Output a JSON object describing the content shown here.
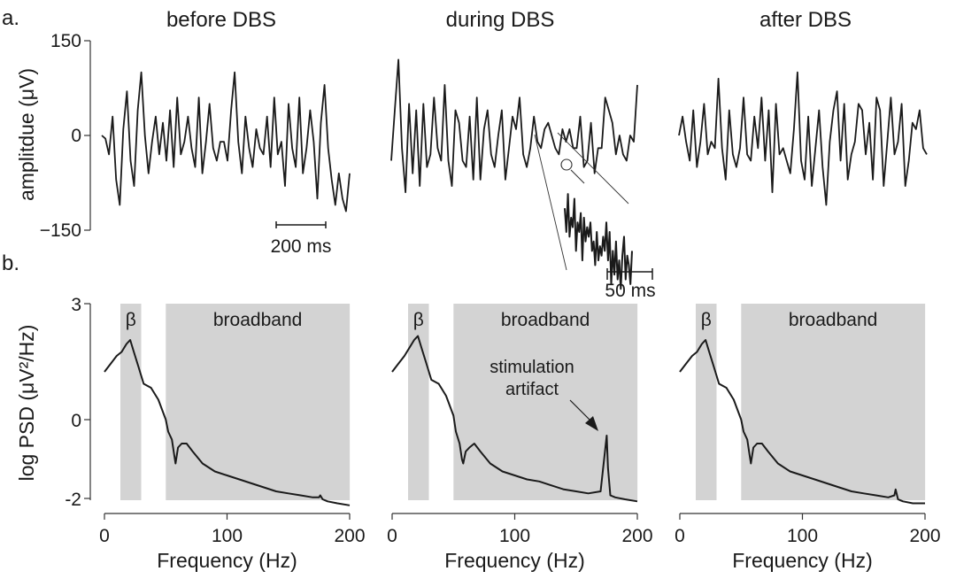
{
  "figure": {
    "label_a": "a.",
    "label_b": "b.",
    "titles": [
      "before DBS",
      "during DBS",
      "after DBS"
    ]
  },
  "colors": {
    "trace": "#1a1a1a",
    "band_fill": "#d3d3d3",
    "axis": "#333333"
  },
  "chart_data": [
    {
      "type": "line",
      "panel": "a",
      "ylabel": "amplitdue  (μV)",
      "ylim": [
        -150,
        150
      ],
      "yticks": [
        "150",
        "0",
        "−150"
      ],
      "scale_bar": "200 ms",
      "series": [
        {
          "name": "before DBS",
          "values": [
            0,
            -5,
            -30,
            30,
            -70,
            -110,
            10,
            70,
            -40,
            -80,
            40,
            100,
            0,
            -60,
            -10,
            30,
            -30,
            20,
            -40,
            40,
            -50,
            60,
            -30,
            -10,
            30,
            -20,
            -50,
            60,
            -60,
            -10,
            50,
            -20,
            -40,
            -10,
            -10,
            -40,
            40,
            100,
            -10,
            -60,
            30,
            -20,
            -50,
            10,
            -20,
            -30,
            30,
            -50,
            60,
            -30,
            -10,
            -80,
            50,
            -20,
            -50,
            60,
            -60,
            -20,
            40,
            -10,
            -100,
            20,
            80,
            -20,
            -70,
            -110,
            -60,
            -100,
            -120,
            -60
          ]
        },
        {
          "name": "during DBS",
          "values": [
            -40,
            40,
            120,
            -20,
            -90,
            50,
            -60,
            40,
            -80,
            50,
            -50,
            -30,
            60,
            -20,
            -40,
            80,
            -40,
            -80,
            40,
            20,
            -40,
            -50,
            30,
            -70,
            60,
            -70,
            10,
            40,
            -30,
            -50,
            0,
            40,
            -70,
            -20,
            30,
            10,
            60,
            -30,
            -50,
            -20,
            30,
            -10,
            -20,
            10,
            20,
            0,
            -20,
            -30,
            10,
            -10,
            10,
            -20,
            -20,
            30,
            -50,
            -40,
            20,
            -60,
            -20,
            -20,
            60,
            40,
            20,
            -30,
            0,
            -30,
            -40,
            0,
            -10,
            80
          ]
        },
        {
          "name": "after DBS",
          "values": [
            0,
            30,
            -10,
            -40,
            40,
            -50,
            -10,
            50,
            -30,
            -10,
            -20,
            90,
            -20,
            -70,
            40,
            -30,
            -50,
            -20,
            60,
            -30,
            -40,
            30,
            -20,
            60,
            -40,
            40,
            -90,
            50,
            -30,
            -20,
            -40,
            -60,
            10,
            100,
            -40,
            -70,
            30,
            -80,
            -20,
            40,
            -50,
            -110,
            -10,
            40,
            70,
            -40,
            50,
            -70,
            -30,
            -10,
            50,
            40,
            -30,
            20,
            -70,
            60,
            40,
            -80,
            -10,
            60,
            -30,
            -10,
            50,
            -80,
            -40,
            20,
            10,
            40,
            -20,
            -30
          ]
        }
      ],
      "inset": {
        "scale_bar": "50 ms",
        "values": [
          -130,
          -80,
          -160,
          -70,
          -110,
          -90,
          -150,
          -40,
          -100,
          -80,
          -120,
          -20,
          -110,
          -60,
          -90,
          -70,
          -100,
          -40,
          -60,
          -10,
          -80,
          -20,
          -50,
          -30,
          -70,
          -40,
          -100,
          -20,
          -80,
          30,
          -40,
          10,
          -60,
          20,
          -20,
          40,
          -30,
          -70,
          20,
          -30,
          -10,
          30,
          -40
        ]
      }
    },
    {
      "type": "area",
      "panel": "b",
      "xlabel": "Frequency (Hz)",
      "ylabel": "log PSD  (μV²/Hz)",
      "xlim": [
        0,
        200
      ],
      "ylim": [
        -2.2,
        3
      ],
      "xticks": [
        0,
        100,
        200
      ],
      "yticks": [
        "3",
        "0",
        "-2"
      ],
      "bands": [
        {
          "label": "β",
          "range": [
            13,
            30
          ]
        },
        {
          "label": "broadband",
          "range": [
            50,
            200
          ]
        }
      ],
      "x": [
        0,
        5,
        10,
        14,
        18,
        21,
        24,
        28,
        32,
        38,
        44,
        50,
        52,
        55,
        57,
        58,
        60,
        63,
        67,
        72,
        80,
        90,
        100,
        110,
        120,
        130,
        140,
        150,
        160,
        170,
        175,
        176,
        178,
        182,
        190,
        200
      ],
      "series": [
        {
          "name": "before DBS",
          "values": [
            1.2,
            1.4,
            1.6,
            1.7,
            1.9,
            2.0,
            1.7,
            1.3,
            0.9,
            0.8,
            0.5,
            0.0,
            -0.3,
            -0.5,
            -0.9,
            -1.1,
            -0.7,
            -0.6,
            -0.6,
            -0.8,
            -1.1,
            -1.3,
            -1.4,
            -1.5,
            -1.6,
            -1.7,
            -1.8,
            -1.85,
            -1.9,
            -1.95,
            -1.95,
            -1.9,
            -2.0,
            -2.05,
            -2.1,
            -2.15
          ]
        },
        {
          "name": "during DBS",
          "values": [
            1.2,
            1.4,
            1.6,
            1.8,
            2.0,
            2.1,
            1.8,
            1.4,
            1.0,
            0.9,
            0.6,
            0.1,
            -0.3,
            -0.6,
            -1.0,
            -1.1,
            -0.8,
            -0.7,
            -0.6,
            -0.8,
            -1.1,
            -1.3,
            -1.4,
            -1.5,
            -1.55,
            -1.65,
            -1.75,
            -1.8,
            -1.85,
            -1.8,
            -0.4,
            -1.2,
            -1.9,
            -1.95,
            -2.0,
            -2.05
          ]
        },
        {
          "name": "after DBS",
          "values": [
            1.2,
            1.4,
            1.6,
            1.7,
            1.9,
            2.0,
            1.7,
            1.3,
            0.9,
            0.8,
            0.5,
            0.0,
            -0.3,
            -0.5,
            -0.9,
            -1.1,
            -0.7,
            -0.6,
            -0.6,
            -0.8,
            -1.1,
            -1.3,
            -1.4,
            -1.5,
            -1.6,
            -1.7,
            -1.8,
            -1.85,
            -1.9,
            -1.95,
            -1.9,
            -1.75,
            -2.0,
            -2.05,
            -2.1,
            -2.1
          ]
        }
      ],
      "annotation": {
        "text_line1": "stimulation",
        "text_line2": "artifact",
        "x": 170,
        "y": -0.4
      }
    }
  ]
}
